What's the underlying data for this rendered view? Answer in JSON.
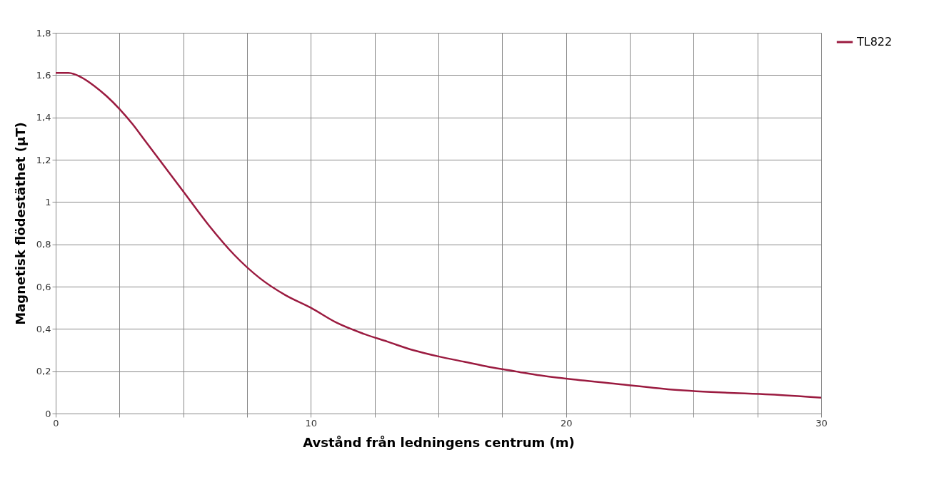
{
  "chart_data": {
    "type": "line",
    "xlabel": "Avstånd från ledningens centrum (m)",
    "ylabel": "Magnetisk flödestäthet (µT)",
    "x": [
      0,
      0.5,
      1,
      1.5,
      2,
      2.5,
      3,
      3.5,
      4,
      5,
      6,
      7,
      8,
      9,
      10,
      11,
      12,
      13,
      14,
      15,
      16,
      17,
      18,
      19,
      20,
      22,
      24,
      26,
      28,
      30
    ],
    "series": [
      {
        "name": "TL822",
        "color": "#9b1b40",
        "values": [
          1.61,
          1.61,
          1.59,
          1.55,
          1.5,
          1.44,
          1.37,
          1.29,
          1.21,
          1.05,
          0.89,
          0.75,
          0.64,
          0.56,
          0.5,
          0.43,
          0.38,
          0.34,
          0.3,
          0.27,
          0.245,
          0.22,
          0.2,
          0.18,
          0.165,
          0.14,
          0.115,
          0.1,
          0.09,
          0.075
        ]
      }
    ],
    "xlim": [
      0,
      30
    ],
    "xticks": [
      0,
      {
        "value": 2.5,
        "label": null
      },
      {
        "value": 5,
        "label": null
      },
      {
        "value": 7.5,
        "label": null
      },
      10,
      {
        "value": 12.5,
        "label": null
      },
      {
        "value": 15,
        "label": null
      },
      {
        "value": 17.5,
        "label": null
      },
      20,
      {
        "value": 22.5,
        "label": null
      },
      {
        "value": 25,
        "label": null
      },
      {
        "value": 27.5,
        "label": null
      },
      30
    ],
    "ylim": [
      0,
      1.8
    ],
    "yticks": [
      0,
      {
        "value": 0.2,
        "label": "0,2"
      },
      {
        "value": 0.4,
        "label": "0,4"
      },
      {
        "value": 0.6,
        "label": "0,6"
      },
      {
        "value": 0.8,
        "label": "0,8"
      },
      1,
      {
        "value": 1.2,
        "label": "1,2"
      },
      {
        "value": 1.4,
        "label": "1,4"
      },
      {
        "value": 1.6,
        "label": "1,6"
      },
      {
        "value": 1.8,
        "label": "1,8"
      }
    ],
    "grid": true,
    "legend": "right",
    "marker": "none",
    "line_style": "solid"
  }
}
